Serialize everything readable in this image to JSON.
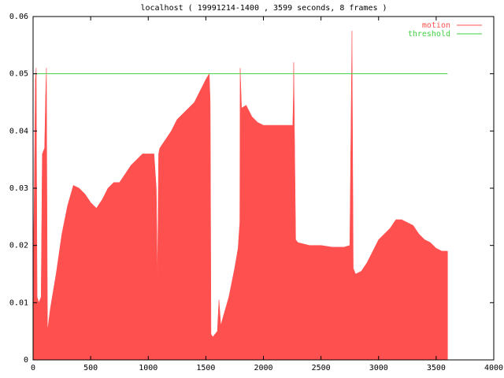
{
  "chart_data": {
    "type": "area",
    "title": "localhost ( 19991214-1400 , 3599 seconds, 8 frames )",
    "xlim": [
      0,
      4000
    ],
    "xticks": [
      0,
      500,
      1000,
      1500,
      2000,
      2500,
      3000,
      3500,
      4000
    ],
    "ylim": [
      0,
      0.06
    ],
    "yticks": [
      0,
      0.01,
      0.02,
      0.03,
      0.04,
      0.05,
      0.06
    ],
    "legend": "top-right",
    "series": [
      {
        "name": "motion",
        "color": "#ff5050",
        "x": [
          0,
          10,
          20,
          27,
          35,
          50,
          70,
          80,
          100,
          110,
          116,
          125,
          150,
          200,
          250,
          300,
          350,
          400,
          450,
          500,
          550,
          600,
          650,
          700,
          750,
          800,
          850,
          900,
          950,
          1000,
          1050,
          1070,
          1080,
          1090,
          1100,
          1150,
          1200,
          1250,
          1300,
          1350,
          1400,
          1450,
          1500,
          1530,
          1538,
          1545,
          1560,
          1600,
          1614,
          1630,
          1650,
          1700,
          1750,
          1780,
          1795,
          1798,
          1810,
          1850,
          1900,
          1950,
          2000,
          2100,
          2200,
          2255,
          2260,
          2263,
          2280,
          2300,
          2400,
          2500,
          2600,
          2700,
          2750,
          2769,
          2780,
          2800,
          2850,
          2900,
          2950,
          3000,
          3050,
          3100,
          3150,
          3200,
          3250,
          3300,
          3350,
          3400,
          3450,
          3500,
          3550,
          3599
        ],
        "values": [
          0.014,
          0.029,
          0.049,
          0.051,
          0.011,
          0.01,
          0.011,
          0.036,
          0.037,
          0.047,
          0.051,
          0.005,
          0.009,
          0.015,
          0.022,
          0.027,
          0.0305,
          0.03,
          0.029,
          0.0275,
          0.0265,
          0.028,
          0.03,
          0.031,
          0.031,
          0.0325,
          0.034,
          0.035,
          0.036,
          0.036,
          0.036,
          0.03,
          0.0135,
          0.036,
          0.037,
          0.0385,
          0.04,
          0.042,
          0.043,
          0.044,
          0.045,
          0.047,
          0.049,
          0.05,
          0.045,
          0.0045,
          0.004,
          0.005,
          0.0105,
          0.006,
          0.0075,
          0.011,
          0.016,
          0.0195,
          0.024,
          0.051,
          0.044,
          0.0445,
          0.0425,
          0.0415,
          0.041,
          0.041,
          0.041,
          0.041,
          0.046,
          0.052,
          0.021,
          0.0205,
          0.02,
          0.02,
          0.0197,
          0.0197,
          0.02,
          0.0575,
          0.016,
          0.015,
          0.0155,
          0.017,
          0.019,
          0.021,
          0.022,
          0.023,
          0.0245,
          0.0245,
          0.024,
          0.0235,
          0.022,
          0.021,
          0.0205,
          0.0195,
          0.019,
          0.019
        ]
      },
      {
        "name": "threshold",
        "color": "#40d040",
        "x": [
          0,
          3599
        ],
        "values": [
          0.05,
          0.05
        ]
      }
    ]
  }
}
